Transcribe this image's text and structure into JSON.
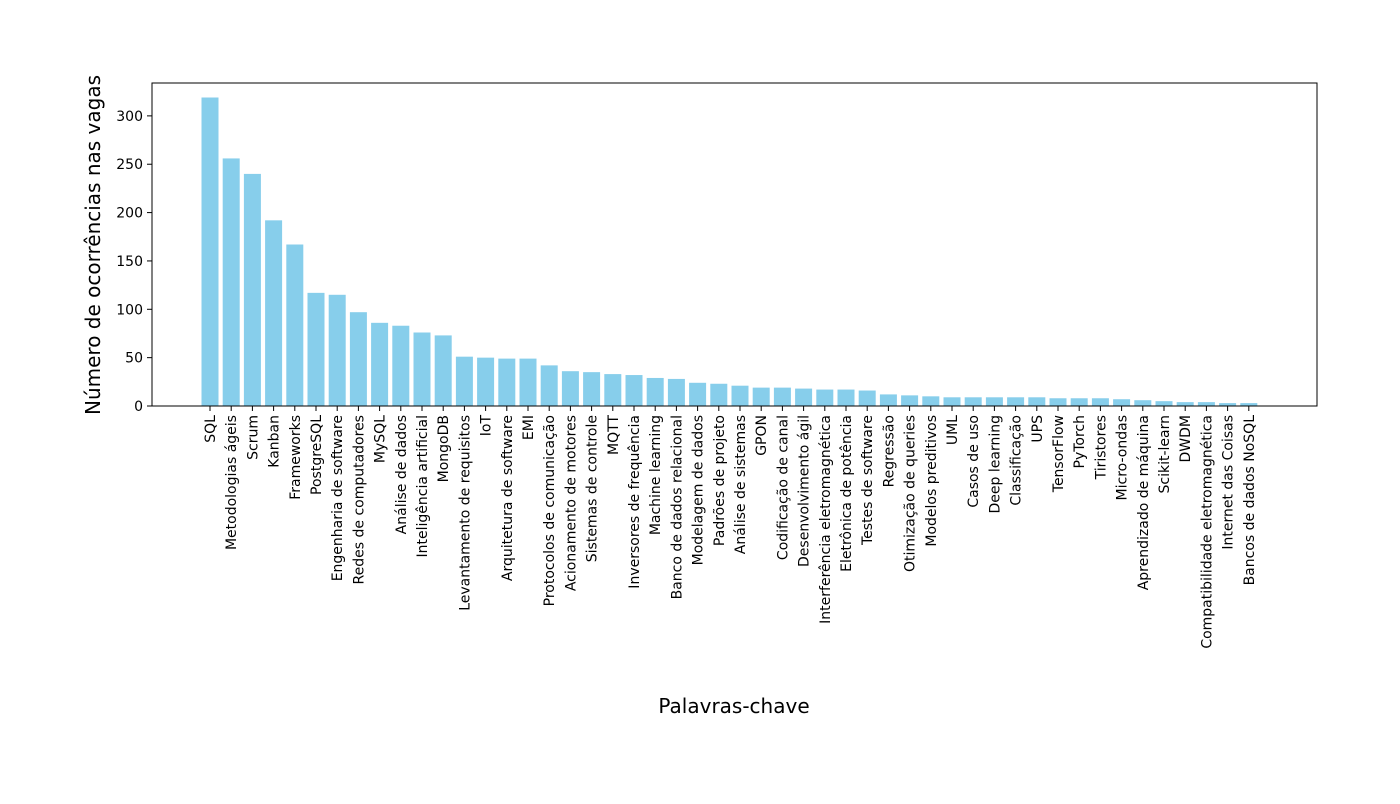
{
  "chart_data": {
    "type": "bar",
    "xlabel": "Palavras-chave",
    "ylabel": "Número de ocorrências nas vagas",
    "ylim": [
      0,
      334
    ],
    "yticks": [
      0,
      50,
      100,
      150,
      200,
      250,
      300
    ],
    "grid": false,
    "bar_color": "#87ceeb",
    "categories": [
      "SQL",
      "Metodologias ágeis",
      "Scrum",
      "Kanban",
      "Frameworks",
      "PostgreSQL",
      "Engenharia de software",
      "Redes de computadores",
      "MySQL",
      "Análise de dados",
      "Inteligência artificial",
      "MongoDB",
      "Levantamento de requisitos",
      "IoT",
      "Arquitetura de software",
      "EMI",
      "Protocolos de comunicação",
      "Acionamento de motores",
      "Sistemas de controle",
      "MQTT",
      "Inversores de frequência",
      "Machine learning",
      "Banco de dados relacional",
      "Modelagem de dados",
      "Padrões de projeto",
      "Análise de sistemas",
      "GPON",
      "Codificação de canal",
      "Desenvolvimento ágil",
      "Interferência eletromagnética",
      "Eletrônica de potência",
      "Testes de software",
      "Regressão",
      "Otimização de queries",
      "Modelos preditivos",
      "UML",
      "Casos de uso",
      "Deep learning",
      "Classificação",
      "UPS",
      "TensorFlow",
      "PyTorch",
      "Tiristores",
      "Micro-ondas",
      "Aprendizado de máquina",
      "Scikit-learn",
      "DWDM",
      "Compatibilidade eletromagnética",
      "Internet das Coisas",
      "Bancos de dados NoSQL"
    ],
    "values": [
      319,
      256,
      240,
      192,
      167,
      117,
      115,
      97,
      86,
      83,
      76,
      73,
      51,
      50,
      49,
      49,
      42,
      36,
      35,
      33,
      32,
      29,
      28,
      24,
      23,
      21,
      19,
      19,
      18,
      17,
      17,
      16,
      12,
      11,
      10,
      9,
      9,
      9,
      9,
      9,
      8,
      8,
      8,
      7,
      6,
      5,
      4,
      4,
      3,
      3
    ]
  }
}
